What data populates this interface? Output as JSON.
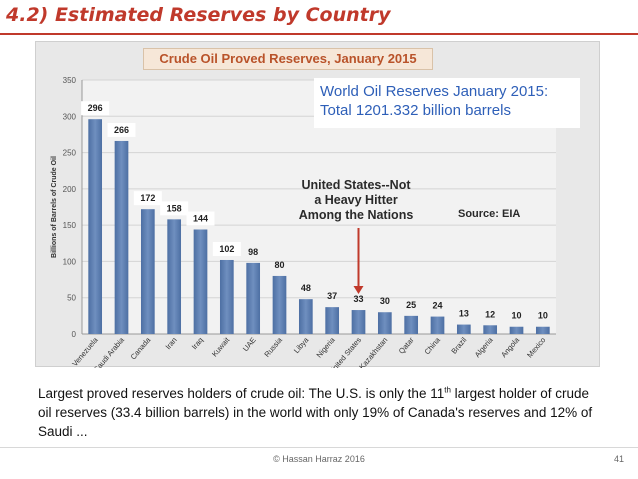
{
  "slide": {
    "title": "4.2) Estimated Reserves by Country",
    "caption_part1": "Largest proved reserves holders of crude oil: The U.S. is only the 11",
    "caption_sup": "th",
    "caption_part2": " largest holder of crude oil reserves (33.4 billion barrels) in the world with only 19% of Canada's reserves and 12% of Saudi ...",
    "footer_copyright": "© Hassan Harraz 2016",
    "page_number": "41"
  },
  "chart_data": {
    "type": "bar",
    "title": "Crude Oil Proved Reserves, January 2015",
    "ylabel": "Billions of Barrels of Crude Oil",
    "xlabel": "",
    "ylim": [
      0,
      350
    ],
    "yticks": [
      0,
      50,
      100,
      150,
      200,
      250,
      300,
      350
    ],
    "grid": true,
    "categories": [
      "Venezuela",
      "Saudi Arabia",
      "Canada",
      "Iran",
      "Iraq",
      "Kuwait",
      "UAE",
      "Russia",
      "Libya",
      "Nigeria",
      "United States",
      "Kazakhstan",
      "Qatar",
      "China",
      "Brazil",
      "Algeria",
      "Angola",
      "Mexico"
    ],
    "values": [
      296,
      266,
      172,
      158,
      144,
      102,
      98,
      80,
      48,
      37,
      33,
      30,
      25,
      24,
      13,
      12,
      10,
      10
    ],
    "bar_color": "#6f8fbf",
    "highlighted_labels": [
      296,
      266,
      172,
      158,
      144,
      102
    ],
    "world_total_line1": "World Oil Reserves January 2015:",
    "world_total_line2": "Total 1201.332 billion barrels",
    "annotation": [
      "United States--Not",
      "a Heavy Hitter",
      "Among the Nations"
    ],
    "annotation_arrow_color": "#c0392b",
    "source": "Source:  EIA"
  }
}
